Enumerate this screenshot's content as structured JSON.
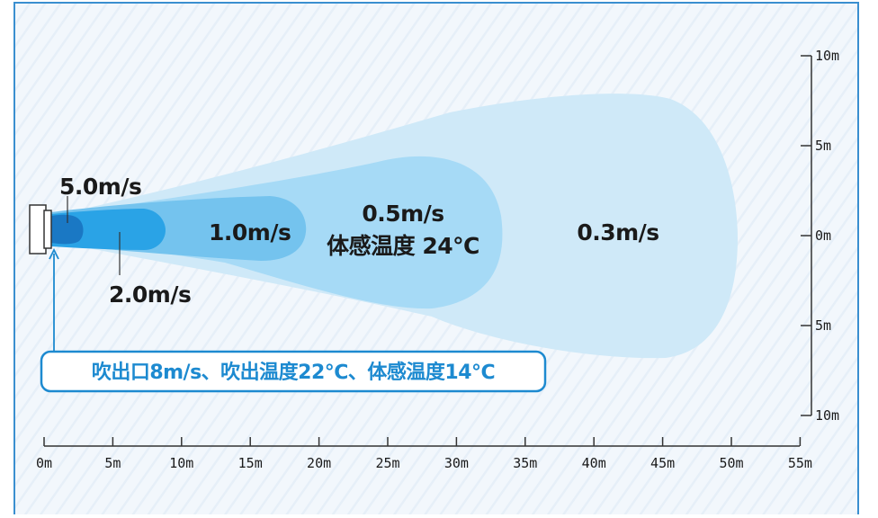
{
  "zones": {
    "v50": "5.0m/s",
    "v20": "2.0m/s",
    "v10": "1.0m/s",
    "v05": "0.5m/s",
    "v05_temp": "体感温度 24℃",
    "v03": "0.3m/s"
  },
  "callout": "吹出口8m/s、吹出温度22℃、体感温度14℃",
  "x_axis_ticks": [
    "0m",
    "5m",
    "10m",
    "15m",
    "20m",
    "25m",
    "30m",
    "35m",
    "40m",
    "45m",
    "50m",
    "55m"
  ],
  "y_axis_ticks": [
    "10m",
    "5m",
    "0m",
    "5m",
    "10m"
  ],
  "colors": {
    "frame": "#3a8fd0",
    "background": "#f2f7fc",
    "zone_03": "#cfe9f8",
    "zone_05": "#a6daf6",
    "zone_10": "#74c3ee",
    "zone_20": "#2aa3e6",
    "zone_50": "#1a78c4",
    "callout_border": "#1d8ad0",
    "callout_text": "#1d8ad0"
  }
}
